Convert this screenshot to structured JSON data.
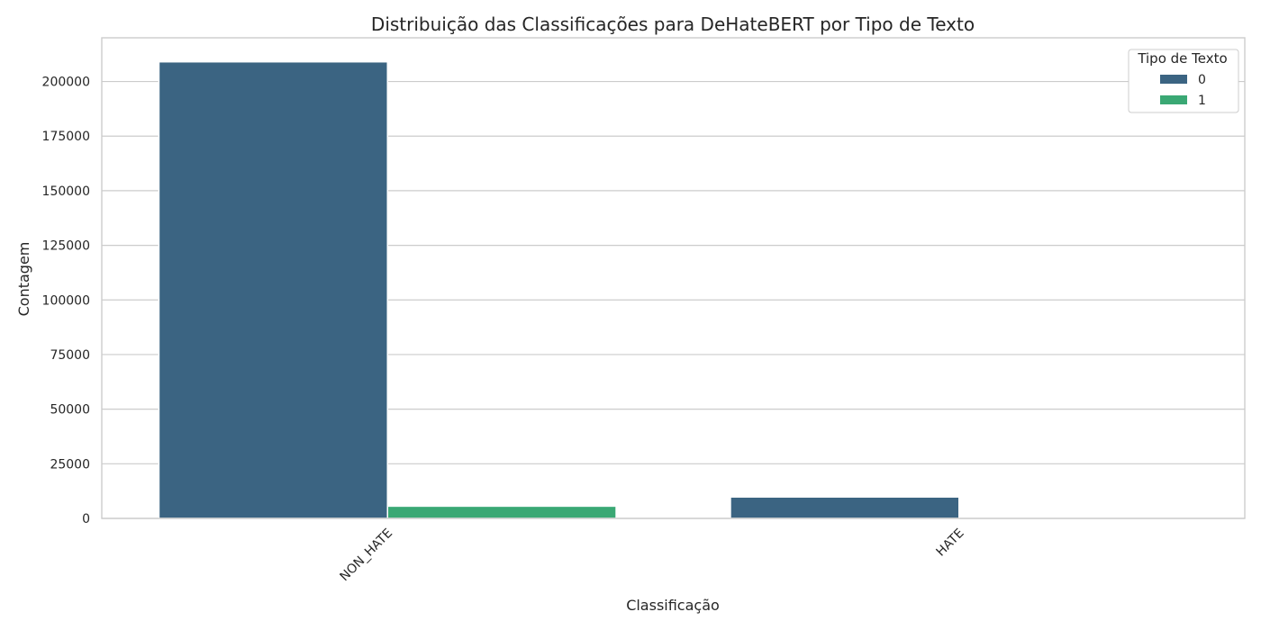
{
  "chart_data": {
    "type": "bar",
    "title": "Distribuição das Classificações para DeHateBERT por Tipo de Texto",
    "xlabel": "Classificação",
    "ylabel": "Contagem",
    "categories": [
      "NON_HATE",
      "HATE"
    ],
    "series": [
      {
        "name": "0",
        "values": [
          209000,
          9800
        ],
        "color": "#3b6482"
      },
      {
        "name": "1",
        "values": [
          5600,
          0
        ],
        "color": "#3aa874"
      }
    ],
    "legend_title": "Tipo de Texto",
    "legend_position": "top-right",
    "ylim": [
      0,
      220000
    ],
    "yticks": [
      0,
      25000,
      50000,
      75000,
      100000,
      125000,
      150000,
      175000,
      200000
    ],
    "grid": true
  }
}
